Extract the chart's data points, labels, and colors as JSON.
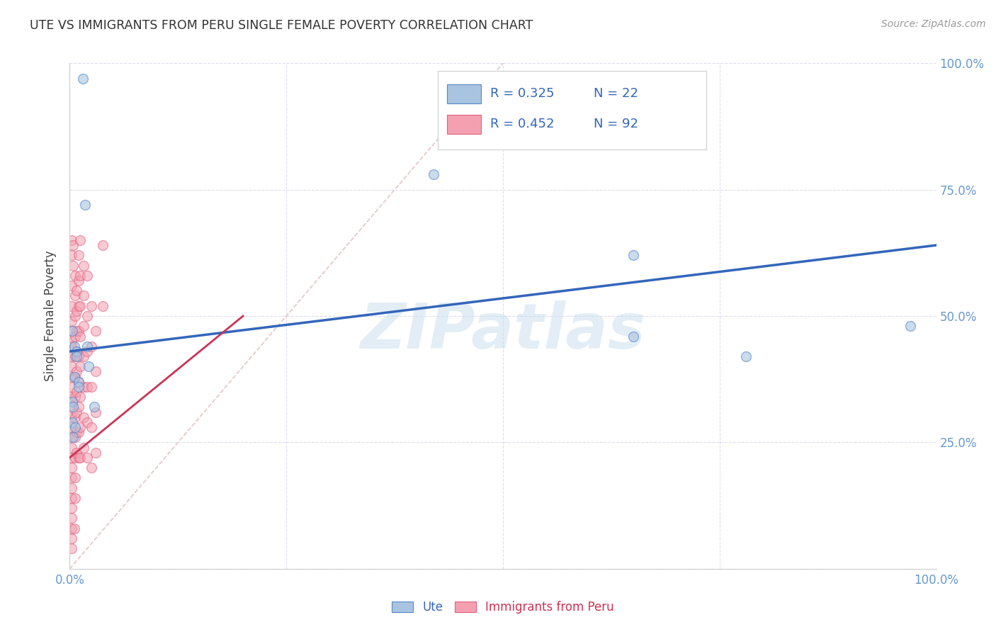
{
  "title": "UTE VS IMMIGRANTS FROM PERU SINGLE FEMALE POVERTY CORRELATION CHART",
  "source": "Source: ZipAtlas.com",
  "ylabel": "Single Female Poverty",
  "xlim": [
    0,
    1
  ],
  "ylim": [
    0,
    1
  ],
  "xticks": [
    0.0,
    0.25,
    0.5,
    0.75,
    1.0
  ],
  "yticks": [
    0.0,
    0.25,
    0.5,
    0.75,
    1.0
  ],
  "xticklabels": [
    "0.0%",
    "",
    "",
    "",
    "100.0%"
  ],
  "yticklabels_right": [
    "",
    "25.0%",
    "50.0%",
    "75.0%",
    "100.0%"
  ],
  "legend_blue_r": "R = 0.325",
  "legend_blue_n": "N = 22",
  "legend_pink_r": "R = 0.452",
  "legend_pink_n": "N = 92",
  "legend_label_blue": "Ute",
  "legend_label_pink": "Immigrants from Peru",
  "blue_color": "#A8C4E0",
  "pink_color": "#F4A0B0",
  "blue_edge_color": "#5588CC",
  "pink_edge_color": "#E06080",
  "blue_line_color": "#3366BB",
  "pink_line_color": "#CC3355",
  "watermark": "ZIPatlas",
  "blue_points": [
    [
      0.015,
      0.97
    ],
    [
      0.018,
      0.72
    ],
    [
      0.005,
      0.44
    ],
    [
      0.008,
      0.43
    ],
    [
      0.008,
      0.42
    ],
    [
      0.005,
      0.38
    ],
    [
      0.01,
      0.37
    ],
    [
      0.01,
      0.36
    ],
    [
      0.003,
      0.33
    ],
    [
      0.004,
      0.32
    ],
    [
      0.003,
      0.29
    ],
    [
      0.006,
      0.28
    ],
    [
      0.004,
      0.26
    ],
    [
      0.02,
      0.44
    ],
    [
      0.022,
      0.4
    ],
    [
      0.028,
      0.32
    ],
    [
      0.42,
      0.78
    ],
    [
      0.65,
      0.62
    ],
    [
      0.65,
      0.46
    ],
    [
      0.78,
      0.42
    ],
    [
      0.97,
      0.48
    ],
    [
      0.003,
      0.47
    ]
  ],
  "pink_points": [
    [
      0.002,
      0.65
    ],
    [
      0.002,
      0.62
    ],
    [
      0.002,
      0.56
    ],
    [
      0.002,
      0.52
    ],
    [
      0.002,
      0.49
    ],
    [
      0.002,
      0.47
    ],
    [
      0.002,
      0.45
    ],
    [
      0.002,
      0.44
    ],
    [
      0.002,
      0.42
    ],
    [
      0.002,
      0.4
    ],
    [
      0.002,
      0.38
    ],
    [
      0.002,
      0.36
    ],
    [
      0.002,
      0.34
    ],
    [
      0.002,
      0.32
    ],
    [
      0.002,
      0.3
    ],
    [
      0.002,
      0.28
    ],
    [
      0.002,
      0.26
    ],
    [
      0.002,
      0.24
    ],
    [
      0.002,
      0.22
    ],
    [
      0.002,
      0.2
    ],
    [
      0.002,
      0.18
    ],
    [
      0.002,
      0.16
    ],
    [
      0.002,
      0.14
    ],
    [
      0.002,
      0.12
    ],
    [
      0.002,
      0.1
    ],
    [
      0.002,
      0.08
    ],
    [
      0.002,
      0.06
    ],
    [
      0.002,
      0.04
    ],
    [
      0.004,
      0.64
    ],
    [
      0.004,
      0.6
    ],
    [
      0.006,
      0.58
    ],
    [
      0.006,
      0.54
    ],
    [
      0.006,
      0.5
    ],
    [
      0.006,
      0.46
    ],
    [
      0.006,
      0.42
    ],
    [
      0.006,
      0.38
    ],
    [
      0.006,
      0.34
    ],
    [
      0.006,
      0.3
    ],
    [
      0.006,
      0.26
    ],
    [
      0.006,
      0.22
    ],
    [
      0.006,
      0.18
    ],
    [
      0.006,
      0.14
    ],
    [
      0.008,
      0.55
    ],
    [
      0.008,
      0.51
    ],
    [
      0.008,
      0.47
    ],
    [
      0.008,
      0.43
    ],
    [
      0.008,
      0.39
    ],
    [
      0.008,
      0.35
    ],
    [
      0.008,
      0.31
    ],
    [
      0.008,
      0.27
    ],
    [
      0.008,
      0.23
    ],
    [
      0.01,
      0.62
    ],
    [
      0.01,
      0.57
    ],
    [
      0.01,
      0.52
    ],
    [
      0.01,
      0.47
    ],
    [
      0.01,
      0.42
    ],
    [
      0.01,
      0.37
    ],
    [
      0.01,
      0.32
    ],
    [
      0.01,
      0.27
    ],
    [
      0.01,
      0.22
    ],
    [
      0.012,
      0.65
    ],
    [
      0.012,
      0.58
    ],
    [
      0.012,
      0.52
    ],
    [
      0.012,
      0.46
    ],
    [
      0.012,
      0.4
    ],
    [
      0.012,
      0.34
    ],
    [
      0.012,
      0.28
    ],
    [
      0.012,
      0.22
    ],
    [
      0.016,
      0.6
    ],
    [
      0.016,
      0.54
    ],
    [
      0.016,
      0.48
    ],
    [
      0.016,
      0.42
    ],
    [
      0.016,
      0.36
    ],
    [
      0.016,
      0.3
    ],
    [
      0.016,
      0.24
    ],
    [
      0.02,
      0.58
    ],
    [
      0.02,
      0.5
    ],
    [
      0.02,
      0.43
    ],
    [
      0.02,
      0.36
    ],
    [
      0.02,
      0.29
    ],
    [
      0.02,
      0.22
    ],
    [
      0.025,
      0.52
    ],
    [
      0.025,
      0.44
    ],
    [
      0.025,
      0.36
    ],
    [
      0.025,
      0.28
    ],
    [
      0.025,
      0.2
    ],
    [
      0.03,
      0.47
    ],
    [
      0.03,
      0.39
    ],
    [
      0.03,
      0.31
    ],
    [
      0.03,
      0.23
    ],
    [
      0.038,
      0.64
    ],
    [
      0.038,
      0.52
    ],
    [
      0.005,
      0.08
    ]
  ],
  "blue_line_x": [
    0.0,
    1.0
  ],
  "blue_line_y": [
    0.43,
    0.64
  ],
  "pink_line_x": [
    0.0,
    0.2
  ],
  "pink_line_y": [
    0.22,
    0.5
  ],
  "diag_line_x": [
    0.0,
    0.5
  ],
  "diag_line_y": [
    0.0,
    1.0
  ],
  "background_color": "#FFFFFF",
  "grid_color": "#DDDDEE",
  "title_color": "#333333",
  "axis_tick_color": "#6699CC",
  "ylabel_color": "#444444",
  "source_color": "#999999",
  "watermark_color": "#C8DDED",
  "scatter_size": 100
}
